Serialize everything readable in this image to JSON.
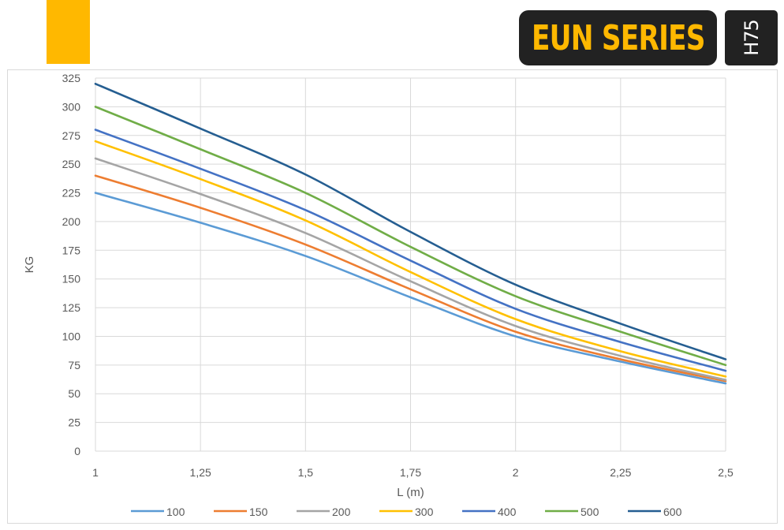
{
  "brand": {
    "series_title": "EUN SERIES",
    "model": "H75",
    "accent_color": "#FFB800",
    "title_color": "#FFB800",
    "badge_color": "#222222"
  },
  "chart_data": {
    "type": "line",
    "title": "",
    "xlabel": "L (m)",
    "ylabel": "KG",
    "x": [
      1,
      1.25,
      1.5,
      1.75,
      2,
      2.25,
      2.5
    ],
    "x_tick_labels": [
      "1",
      "1,25",
      "1,5",
      "1,75",
      "2",
      "2,25",
      "2,5"
    ],
    "xlim": [
      1,
      2.5
    ],
    "ylim": [
      0,
      325
    ],
    "y_ticks": [
      0,
      25,
      50,
      75,
      100,
      125,
      150,
      175,
      200,
      225,
      250,
      275,
      300,
      325
    ],
    "grid": true,
    "legend_position": "bottom",
    "series": [
      {
        "name": "100",
        "color": "#5B9BD5",
        "values": [
          225,
          199,
          170,
          134,
          100,
          78,
          59
        ]
      },
      {
        "name": "150",
        "color": "#ED7D31",
        "values": [
          240,
          212,
          180,
          141,
          104,
          80,
          61
        ]
      },
      {
        "name": "200",
        "color": "#A5A5A5",
        "values": [
          255,
          224,
          190,
          148,
          109,
          83,
          62
        ]
      },
      {
        "name": "300",
        "color": "#FFC000",
        "values": [
          270,
          237,
          201,
          156,
          115,
          87,
          65
        ]
      },
      {
        "name": "400",
        "color": "#4472C4",
        "values": [
          280,
          246,
          210,
          166,
          124,
          95,
          70
        ]
      },
      {
        "name": "500",
        "color": "#70AD47",
        "values": [
          300,
          263,
          225,
          178,
          135,
          104,
          75
        ]
      },
      {
        "name": "600",
        "color": "#255E91",
        "values": [
          320,
          281,
          241,
          191,
          145,
          111,
          80
        ]
      }
    ]
  }
}
